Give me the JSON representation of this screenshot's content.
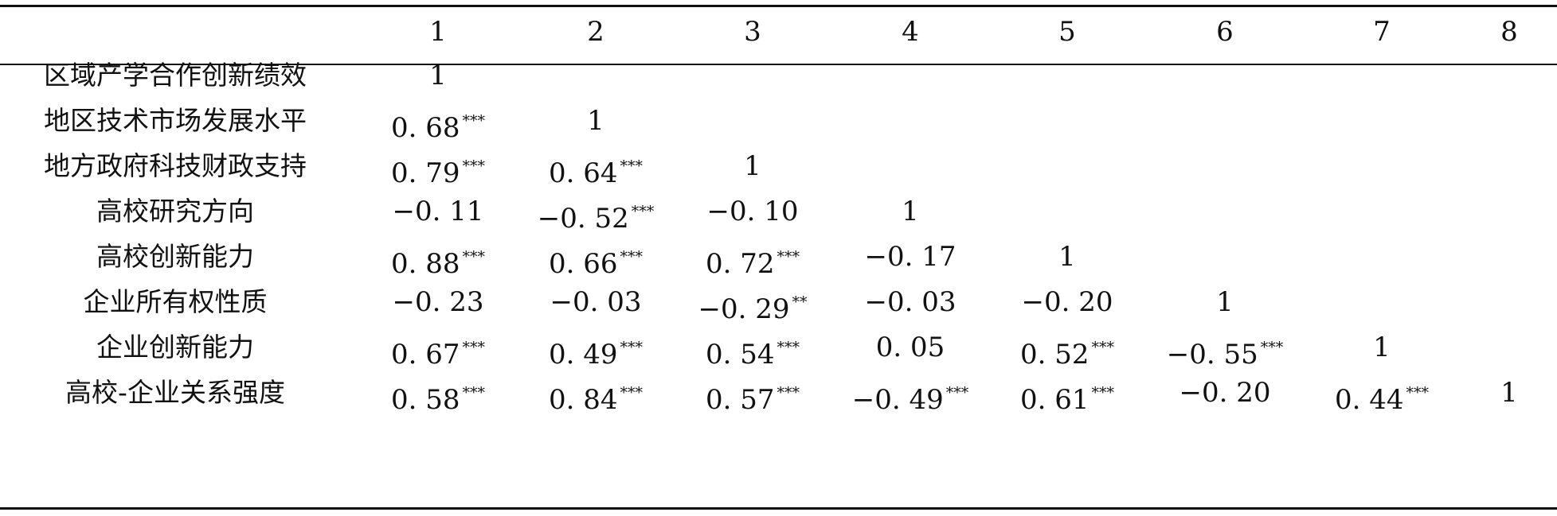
{
  "header": [
    "1",
    "2",
    "3",
    "4",
    "5",
    "6",
    "7",
    "8"
  ],
  "rows": [
    {
      "label": "区域产学合作创新绩效",
      "cells": [
        {
          "v": "1",
          "s": ""
        }
      ]
    },
    {
      "label": "地区技术市场发展水平",
      "cells": [
        {
          "v": "0. 68",
          "s": "***"
        },
        {
          "v": "1",
          "s": ""
        }
      ]
    },
    {
      "label": "地方政府科技财政支持",
      "cells": [
        {
          "v": "0. 79",
          "s": "***"
        },
        {
          "v": "0. 64",
          "s": "***"
        },
        {
          "v": "1",
          "s": ""
        }
      ]
    },
    {
      "label": "高校研究方向",
      "cells": [
        {
          "v": "−0. 11",
          "s": ""
        },
        {
          "v": "−0. 52",
          "s": "***"
        },
        {
          "v": "−0. 10",
          "s": ""
        },
        {
          "v": "1",
          "s": ""
        }
      ]
    },
    {
      "label": "高校创新能力",
      "cells": [
        {
          "v": "0. 88",
          "s": "***"
        },
        {
          "v": "0. 66",
          "s": "***"
        },
        {
          "v": "0. 72",
          "s": "***"
        },
        {
          "v": "−0. 17",
          "s": ""
        },
        {
          "v": "1",
          "s": ""
        }
      ]
    },
    {
      "label": "企业所有权性质",
      "cells": [
        {
          "v": "−0. 23",
          "s": ""
        },
        {
          "v": "−0. 03",
          "s": ""
        },
        {
          "v": "−0. 29",
          "s": "**"
        },
        {
          "v": "−0. 03",
          "s": ""
        },
        {
          "v": "−0. 20",
          "s": ""
        },
        {
          "v": "1",
          "s": ""
        }
      ]
    },
    {
      "label": "企业创新能力",
      "cells": [
        {
          "v": "0. 67",
          "s": "***"
        },
        {
          "v": "0. 49",
          "s": "***"
        },
        {
          "v": "0. 54",
          "s": "***"
        },
        {
          "v": "0. 05",
          "s": ""
        },
        {
          "v": "0. 52",
          "s": "***"
        },
        {
          "v": "−0. 55",
          "s": "***"
        },
        {
          "v": "1",
          "s": ""
        }
      ]
    },
    {
      "label": "高校-企业关系强度",
      "cells": [
        {
          "v": "0. 58",
          "s": "***"
        },
        {
          "v": "0. 84",
          "s": "***"
        },
        {
          "v": "0. 57",
          "s": "***"
        },
        {
          "v": "−0. 49",
          "s": "***"
        },
        {
          "v": "0. 61",
          "s": "***"
        },
        {
          "v": "−0. 20",
          "s": ""
        },
        {
          "v": "0. 44",
          "s": "***"
        },
        {
          "v": "1",
          "s": ""
        }
      ]
    }
  ]
}
